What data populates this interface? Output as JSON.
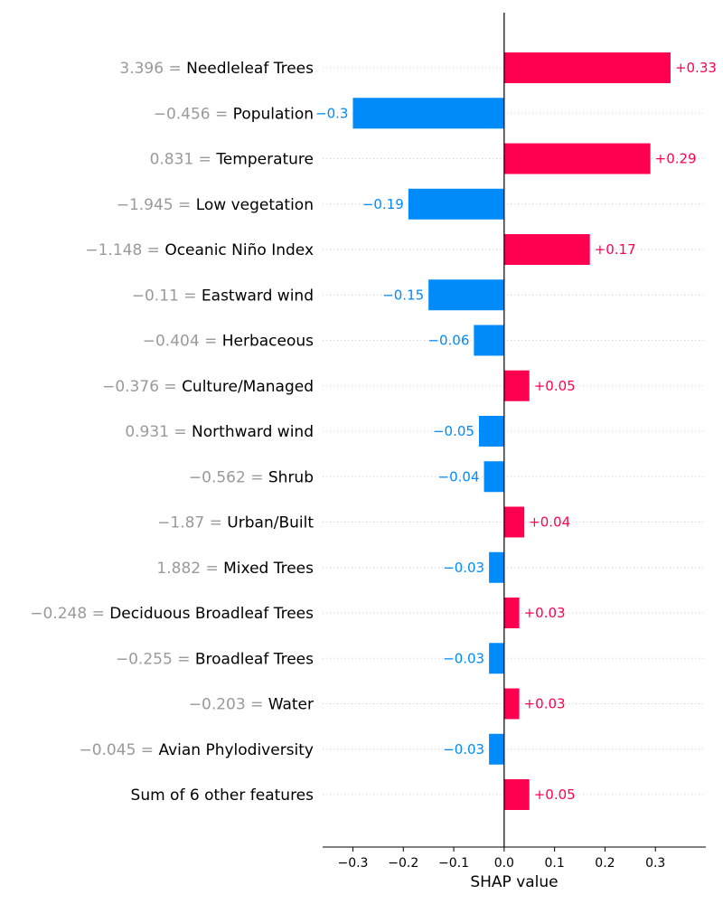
{
  "chart_data": {
    "type": "bar",
    "orientation": "horizontal",
    "xlabel": "SHAP value",
    "xlim": [
      -0.36,
      0.4
    ],
    "xticks": [
      -0.3,
      -0.2,
      -0.1,
      0.0,
      0.1,
      0.2,
      0.3
    ],
    "xtick_labels": [
      "−0.3",
      "−0.2",
      "−0.1",
      "0.0",
      "0.1",
      "0.2",
      "0.3"
    ],
    "grid": "y-dotted",
    "colors": {
      "positive": "#ff0051",
      "negative": "#008bfb",
      "feature_value": "#9a9a9a",
      "feature_name": "#000000",
      "axis": "#000000",
      "grid": "#cccccc"
    },
    "features": [
      {
        "value": "3.396",
        "name": "Needleleaf Trees",
        "shap": 0.33,
        "label": "+0.33"
      },
      {
        "value": "−0.456",
        "name": "Population",
        "shap": -0.3,
        "label": "−0.3"
      },
      {
        "value": "0.831",
        "name": "Temperature",
        "shap": 0.29,
        "label": "+0.29"
      },
      {
        "value": "−1.945",
        "name": "Low vegetation",
        "shap": -0.19,
        "label": "−0.19"
      },
      {
        "value": "−1.148",
        "name": "Oceanic Niño Index",
        "shap": 0.17,
        "label": "+0.17"
      },
      {
        "value": "−0.11",
        "name": "Eastward wind",
        "shap": -0.15,
        "label": "−0.15"
      },
      {
        "value": "−0.404",
        "name": "Herbaceous",
        "shap": -0.06,
        "label": "−0.06"
      },
      {
        "value": "−0.376",
        "name": "Culture/Managed",
        "shap": 0.05,
        "label": "+0.05"
      },
      {
        "value": "0.931",
        "name": "Northward wind",
        "shap": -0.05,
        "label": "−0.05"
      },
      {
        "value": "−0.562",
        "name": "Shrub",
        "shap": -0.04,
        "label": "−0.04"
      },
      {
        "value": "−1.87",
        "name": "Urban/Built",
        "shap": 0.04,
        "label": "+0.04"
      },
      {
        "value": "1.882",
        "name": "Mixed Trees",
        "shap": -0.03,
        "label": "−0.03"
      },
      {
        "value": "−0.248",
        "name": "Deciduous Broadleaf Trees",
        "shap": 0.03,
        "label": "+0.03"
      },
      {
        "value": "−0.255",
        "name": "Broadleaf Trees",
        "shap": -0.03,
        "label": "−0.03"
      },
      {
        "value": "−0.203",
        "name": "Water",
        "shap": 0.03,
        "label": "+0.03"
      },
      {
        "value": "−0.045",
        "name": "Avian Phylodiversity",
        "shap": -0.03,
        "label": "−0.03"
      },
      {
        "value": "",
        "name": "Sum of 6 other features",
        "shap": 0.05,
        "label": "+0.05"
      }
    ]
  }
}
